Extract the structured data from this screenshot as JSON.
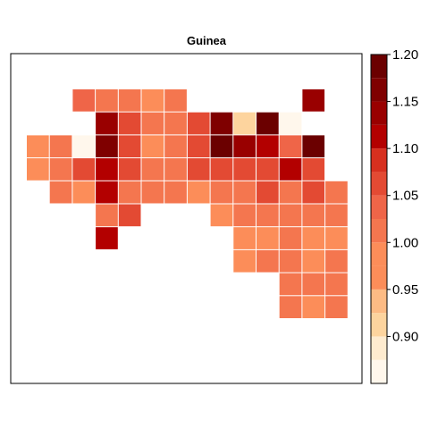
{
  "chart_data": {
    "type": "heatmap",
    "title": "Guinea",
    "colorbar": {
      "breaks": [
        0.85,
        0.875,
        0.9,
        0.925,
        0.95,
        0.975,
        1.0,
        1.025,
        1.05,
        1.075,
        1.1,
        1.125,
        1.15,
        1.175,
        1.2
      ],
      "colors": [
        "#FFF7EC",
        "#FEEBCF",
        "#FDD49E",
        "#FDBB84",
        "#FC8D59",
        "#FC8D59",
        "#F4764F",
        "#EF6548",
        "#E34A33",
        "#D7301F",
        "#B30000",
        "#990000",
        "#7F0000",
        "#6B0000"
      ],
      "tick_labels": [
        "0.90",
        "0.95",
        "1.00",
        "1.05",
        "1.10",
        "1.15",
        "1.20"
      ],
      "tick_values": [
        0.9,
        0.95,
        1.0,
        1.05,
        1.1,
        1.15,
        1.2
      ]
    },
    "grid": {
      "rows": 11,
      "cols": 15,
      "values": [
        [
          null,
          null,
          1.04,
          1.01,
          1.01,
          0.97,
          1.01,
          null,
          null,
          null,
          null,
          null,
          1.14,
          null,
          null
        ],
        [
          null,
          null,
          null,
          1.14,
          1.05,
          1.02,
          1.02,
          1.05,
          1.15,
          0.91,
          1.2,
          0.87,
          null,
          null,
          null
        ],
        [
          0.97,
          1.01,
          0.87,
          1.15,
          1.05,
          0.98,
          1.02,
          1.05,
          1.19,
          1.14,
          1.11,
          1.04,
          1.19,
          null,
          null
        ],
        [
          0.97,
          1.01,
          1.05,
          1.11,
          1.05,
          1.02,
          1.02,
          1.05,
          1.06,
          1.06,
          1.06,
          1.12,
          1.05,
          null,
          null
        ],
        [
          null,
          1.01,
          0.96,
          1.11,
          1.01,
          1.01,
          1.01,
          0.98,
          1.01,
          1.01,
          1.05,
          1.01,
          1.05,
          1.02,
          null
        ],
        [
          null,
          null,
          null,
          1.01,
          1.05,
          null,
          null,
          null,
          0.98,
          1.01,
          1.01,
          1.01,
          1.01,
          1.02,
          null
        ],
        [
          null,
          null,
          null,
          1.11,
          null,
          null,
          null,
          null,
          null,
          0.98,
          0.98,
          1.01,
          0.98,
          0.98,
          null
        ],
        [
          null,
          null,
          null,
          null,
          null,
          null,
          null,
          null,
          null,
          0.98,
          1.01,
          1.01,
          0.98,
          1.01,
          null
        ],
        [
          null,
          null,
          null,
          null,
          null,
          null,
          null,
          null,
          null,
          null,
          null,
          1.01,
          1.01,
          1.01,
          null
        ],
        [
          null,
          null,
          null,
          null,
          null,
          null,
          null,
          null,
          null,
          null,
          null,
          1.01,
          0.98,
          1.01,
          null
        ],
        [
          null,
          null,
          null,
          null,
          null,
          null,
          null,
          null,
          null,
          null,
          null,
          null,
          null,
          null,
          null
        ]
      ]
    }
  }
}
